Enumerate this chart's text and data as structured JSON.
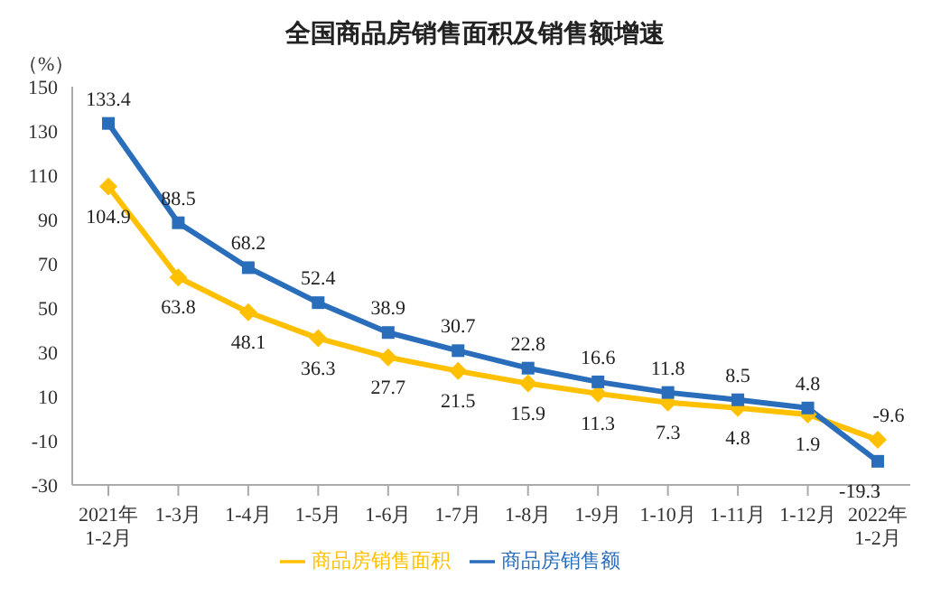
{
  "chart_data": {
    "type": "line",
    "title": "全国商品房销售面积及销售额增速",
    "ylabel": "（%）",
    "categories": [
      "2021年\n1-2月",
      "1-3月",
      "1-4月",
      "1-5月",
      "1-6月",
      "1-7月",
      "1-8月",
      "1-9月",
      "1-10月",
      "1-11月",
      "1-12月",
      "2022年\n1-2月"
    ],
    "series": [
      {
        "name": "商品房销售面积",
        "color": "#ffc000",
        "marker": "diamond",
        "values": [
          104.9,
          63.8,
          48.1,
          36.3,
          27.7,
          21.5,
          15.9,
          11.3,
          7.3,
          4.8,
          1.9,
          -9.6
        ]
      },
      {
        "name": "商品房销售额",
        "color": "#2a6ebb",
        "marker": "square",
        "values": [
          133.4,
          88.5,
          68.2,
          52.4,
          38.9,
          30.7,
          22.8,
          16.6,
          11.8,
          8.5,
          4.8,
          -19.3
        ]
      }
    ],
    "ylim": [
      -30,
      150
    ],
    "yticks": [
      -30,
      -10,
      10,
      30,
      50,
      70,
      90,
      110,
      130,
      150
    ],
    "grid": false,
    "legend": "bottom",
    "data_labels": true,
    "line_style": "solid"
  }
}
